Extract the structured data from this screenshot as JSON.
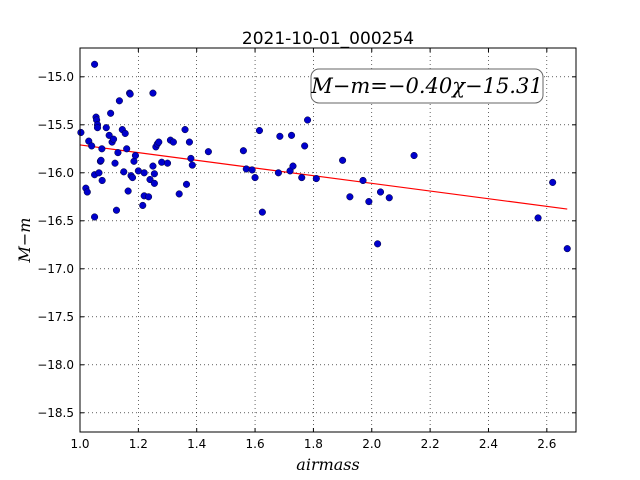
{
  "chart_data": {
    "type": "scatter",
    "title": "2021-10-01_000254",
    "xlabel": "airmass",
    "ylabel": "M−m",
    "xlim": [
      1.0,
      2.7
    ],
    "ylim": [
      -18.7,
      -14.7
    ],
    "y_inverted": true,
    "grid": true,
    "xticks": [
      1.0,
      1.2,
      1.4,
      1.6,
      1.8,
      2.0,
      2.2,
      2.4,
      2.6
    ],
    "xtick_labels": [
      "1.0",
      "1.2",
      "1.4",
      "1.6",
      "1.8",
      "2.0",
      "2.2",
      "2.4",
      "2.6"
    ],
    "yticks": [
      -15.0,
      -15.5,
      -16.0,
      -16.5,
      -17.0,
      -17.5,
      -18.0,
      -18.5
    ],
    "ytick_labels": [
      "−15.0",
      "−15.5",
      "−16.0",
      "−16.5",
      "−17.0",
      "−17.5",
      "−18.0",
      "−18.5"
    ],
    "annotation": "M−m=−0.40χ−15.31",
    "fit": {
      "slope": -0.4,
      "intercept": -15.31,
      "x_range": [
        1.0,
        2.67
      ],
      "color": "#ff0000"
    },
    "point_color": "#0000cc",
    "points": [
      [
        1.003,
        -15.58
      ],
      [
        1.02,
        -16.16
      ],
      [
        1.025,
        -16.2
      ],
      [
        1.03,
        -15.67
      ],
      [
        1.04,
        -15.72
      ],
      [
        1.05,
        -14.87
      ],
      [
        1.05,
        -16.02
      ],
      [
        1.05,
        -16.46
      ],
      [
        1.055,
        -15.42
      ],
      [
        1.057,
        -15.45
      ],
      [
        1.06,
        -15.5
      ],
      [
        1.06,
        -15.53
      ],
      [
        1.065,
        -16.0
      ],
      [
        1.07,
        -15.88
      ],
      [
        1.072,
        -15.87
      ],
      [
        1.075,
        -15.75
      ],
      [
        1.076,
        -16.08
      ],
      [
        1.09,
        -15.53
      ],
      [
        1.1,
        -15.61
      ],
      [
        1.105,
        -15.38
      ],
      [
        1.11,
        -15.68
      ],
      [
        1.115,
        -15.65
      ],
      [
        1.12,
        -15.9
      ],
      [
        1.125,
        -16.39
      ],
      [
        1.13,
        -15.79
      ],
      [
        1.135,
        -15.25
      ],
      [
        1.145,
        -15.55
      ],
      [
        1.15,
        -15.99
      ],
      [
        1.155,
        -15.59
      ],
      [
        1.16,
        -15.75
      ],
      [
        1.165,
        -16.19
      ],
      [
        1.17,
        -15.17
      ],
      [
        1.172,
        -15.18
      ],
      [
        1.175,
        -16.03
      ],
      [
        1.18,
        -16.05
      ],
      [
        1.185,
        -15.88
      ],
      [
        1.19,
        -15.82
      ],
      [
        1.2,
        -15.98
      ],
      [
        1.215,
        -16.34
      ],
      [
        1.22,
        -16.24
      ],
      [
        1.22,
        -16.0
      ],
      [
        1.235,
        -16.25
      ],
      [
        1.24,
        -16.07
      ],
      [
        1.25,
        -15.93
      ],
      [
        1.25,
        -15.17
      ],
      [
        1.255,
        -16.01
      ],
      [
        1.255,
        -16.11
      ],
      [
        1.26,
        -15.73
      ],
      [
        1.265,
        -15.7
      ],
      [
        1.27,
        -15.68
      ],
      [
        1.28,
        -15.89
      ],
      [
        1.3,
        -15.9
      ],
      [
        1.31,
        -15.66
      ],
      [
        1.32,
        -15.68
      ],
      [
        1.34,
        -16.22
      ],
      [
        1.36,
        -15.55
      ],
      [
        1.365,
        -16.12
      ],
      [
        1.375,
        -15.68
      ],
      [
        1.38,
        -15.85
      ],
      [
        1.385,
        -15.92
      ],
      [
        1.44,
        -15.78
      ],
      [
        1.56,
        -15.77
      ],
      [
        1.57,
        -15.96
      ],
      [
        1.59,
        -15.97
      ],
      [
        1.6,
        -16.05
      ],
      [
        1.615,
        -15.56
      ],
      [
        1.625,
        -16.41
      ],
      [
        1.68,
        -16.0
      ],
      [
        1.685,
        -15.62
      ],
      [
        1.72,
        -15.98
      ],
      [
        1.725,
        -15.61
      ],
      [
        1.73,
        -15.93
      ],
      [
        1.76,
        -16.05
      ],
      [
        1.77,
        -15.72
      ],
      [
        1.78,
        -15.45
      ],
      [
        1.81,
        -16.06
      ],
      [
        1.9,
        -15.87
      ],
      [
        1.925,
        -16.25
      ],
      [
        1.97,
        -16.08
      ],
      [
        1.99,
        -16.3
      ],
      [
        2.02,
        -16.74
      ],
      [
        2.03,
        -16.2
      ],
      [
        2.06,
        -16.26
      ],
      [
        2.145,
        -15.82
      ],
      [
        2.57,
        -16.47
      ],
      [
        2.62,
        -16.1
      ],
      [
        2.67,
        -16.79
      ]
    ]
  }
}
